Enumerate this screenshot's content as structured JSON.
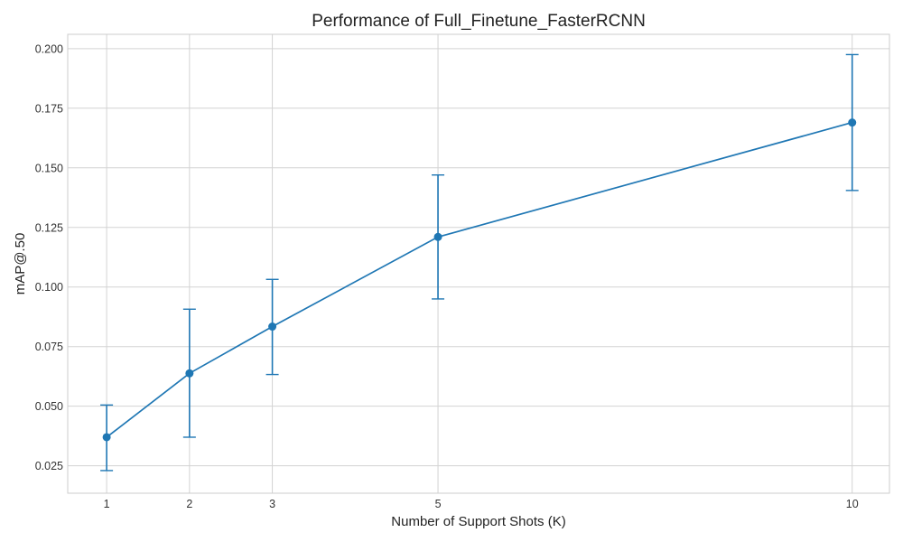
{
  "chart_data": {
    "type": "line",
    "title": "Performance of Full_Finetune_FasterRCNN",
    "xlabel": "Number of Support Shots (K)",
    "ylabel": "mAP@.50",
    "x_ticks": [
      "1",
      "2",
      "3",
      "5",
      "10"
    ],
    "y_ticks": [
      "0.025",
      "0.050",
      "0.075",
      "0.100",
      "0.125",
      "0.150",
      "0.175",
      "0.200"
    ],
    "xlim": [
      0.53,
      10.45
    ],
    "ylim": [
      0.0135,
      0.206
    ],
    "grid": true,
    "legend": "none",
    "series": [
      {
        "color": "#1f77b4",
        "marker": "circle",
        "x": [
          1,
          2,
          3,
          5,
          10
        ],
        "y": [
          0.037,
          0.0638,
          0.0834,
          0.121,
          0.169
        ],
        "error_lower": [
          0.023,
          0.037,
          0.0633,
          0.095,
          0.1405
        ],
        "error_upper": [
          0.0505,
          0.0907,
          0.1032,
          0.147,
          0.1975
        ]
      }
    ]
  }
}
